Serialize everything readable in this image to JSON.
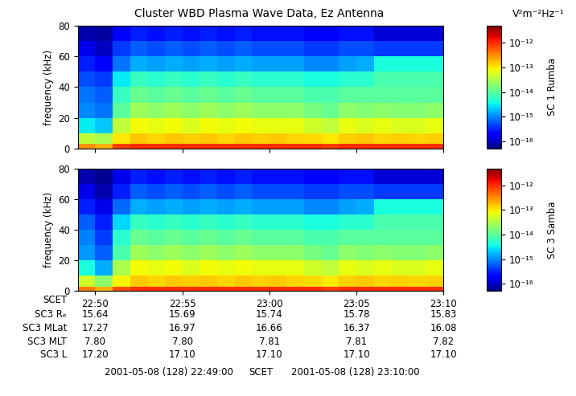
{
  "title": "Cluster WBD Plasma Wave Data, Ez Antenna",
  "units_label": "V²m⁻²Hz⁻¹",
  "chart_data": [
    {
      "type": "heatmap",
      "ylabel": "frequency (kHz)",
      "colorbar_label": "SC 1 Rumba",
      "xlim": [
        1369,
        1390
      ],
      "xticks": [
        1370,
        1375,
        1380,
        1385,
        1390
      ],
      "tick_labels": "y",
      "ylim": [
        0,
        80
      ],
      "yticks": [
        0,
        20,
        40,
        60,
        80
      ],
      "x_edges": [
        1369,
        1370,
        1371,
        1372,
        1373,
        1374,
        1375,
        1376,
        1377,
        1378,
        1379,
        1380,
        1381,
        1382,
        1383,
        1384,
        1385,
        1386,
        1387,
        1388,
        1389,
        1390
      ],
      "y_edges": [
        0,
        3,
        10,
        20,
        30,
        40,
        50,
        60,
        70,
        80
      ],
      "clim": [
        5e-17,
        5e-12
      ],
      "cticks": [
        {
          "value": 1e-16,
          "label": "10⁻¹⁶"
        },
        {
          "value": 1e-15,
          "label": "10⁻¹⁵"
        },
        {
          "value": 1e-14,
          "label": "10⁻¹⁴"
        },
        {
          "value": 1e-13,
          "label": "10⁻¹³"
        },
        {
          "value": 1e-12,
          "label": "10⁻¹²"
        }
      ],
      "cells": [
        [
          3e-13,
          2e-13,
          8e-13,
          1e-12,
          1e-12,
          1e-12,
          1e-12,
          1e-12,
          1e-12,
          1e-12,
          1e-12,
          1e-12,
          1e-12,
          1e-12,
          8e-13,
          1e-12,
          1e-12,
          1e-12,
          1e-12,
          1e-12,
          1e-12
        ],
        [
          4e-14,
          3e-14,
          1e-13,
          1.5e-13,
          1.3e-13,
          1.5e-13,
          1.4e-13,
          1.5e-13,
          1.3e-13,
          1.5e-13,
          1.4e-13,
          1.5e-13,
          1.3e-13,
          1.2e-13,
          1e-13,
          1.4e-13,
          1.5e-13,
          1.3e-13,
          1.4e-13,
          1.3e-13,
          1.4e-13
        ],
        [
          3e-15,
          2e-15,
          4e-14,
          8e-14,
          7e-14,
          8e-14,
          6e-14,
          8e-14,
          7e-14,
          8e-14,
          7e-14,
          7e-14,
          7e-14,
          5e-14,
          4e-14,
          7e-14,
          6e-14,
          7e-14,
          6e-14,
          6e-14,
          7e-14
        ],
        [
          1e-15,
          8e-16,
          1e-14,
          2.5e-14,
          2e-14,
          2.5e-14,
          2e-14,
          2.5e-14,
          2e-14,
          2.5e-14,
          2e-14,
          2e-14,
          2e-14,
          1.5e-14,
          1.2e-14,
          2e-14,
          1.8e-14,
          2e-14,
          1.8e-14,
          1.8e-14,
          2e-14
        ],
        [
          8e-16,
          6e-16,
          6e-15,
          1.2e-14,
          1e-14,
          1.2e-14,
          1e-14,
          1.2e-14,
          1e-14,
          1.2e-14,
          1e-14,
          1e-14,
          1e-14,
          8e-15,
          8e-15,
          1e-14,
          1e-14,
          1e-14,
          1e-14,
          1e-14,
          1e-14
        ],
        [
          5e-16,
          4e-16,
          3e-15,
          6e-15,
          5e-15,
          6e-15,
          5e-15,
          6e-15,
          5e-15,
          6e-15,
          5e-15,
          5e-15,
          5e-15,
          4e-15,
          4e-15,
          5e-15,
          5e-15,
          8e-15,
          8e-15,
          8e-15,
          8e-15
        ],
        [
          3e-16,
          2e-16,
          8e-16,
          1.5e-15,
          1.3e-15,
          1.5e-15,
          1.3e-15,
          1.5e-15,
          1.3e-15,
          1.5e-15,
          1.3e-15,
          1.3e-15,
          1.3e-15,
          1e-15,
          1e-15,
          1.3e-15,
          1.5e-15,
          4e-15,
          4e-15,
          4e-15,
          4e-15
        ],
        [
          1.5e-16,
          1e-16,
          4e-16,
          6e-16,
          5e-16,
          6e-16,
          5e-16,
          6e-16,
          5e-16,
          6e-16,
          5e-16,
          5e-16,
          5e-16,
          4e-16,
          4e-16,
          5e-16,
          5e-16,
          4e-16,
          4e-16,
          4e-16,
          4e-16
        ],
        [
          8e-17,
          7e-17,
          2e-16,
          3e-16,
          2.5e-16,
          3e-16,
          2.5e-16,
          3e-16,
          2.5e-16,
          3e-16,
          2.5e-16,
          2.5e-16,
          2.5e-16,
          2e-16,
          2e-16,
          2.5e-16,
          2.5e-16,
          1.2e-16,
          1.2e-16,
          1.2e-16,
          1.2e-16
        ]
      ]
    },
    {
      "type": "heatmap",
      "ylabel": "frequency (kHz)",
      "colorbar_label": "SC 3 Samba",
      "xlim": [
        1369,
        1390
      ],
      "xticks": [
        {
          "value": 1370,
          "label": "22:50"
        },
        {
          "value": 1375,
          "label": "22:55"
        },
        {
          "value": 1380,
          "label": "23:00"
        },
        {
          "value": 1385,
          "label": "23:05"
        },
        {
          "value": 1390,
          "label": "23:10"
        }
      ],
      "ylim": [
        0,
        80
      ],
      "yticks": [
        0,
        20,
        40,
        60,
        80
      ],
      "x_edges": [
        1369,
        1370,
        1371,
        1372,
        1373,
        1374,
        1375,
        1376,
        1377,
        1378,
        1379,
        1380,
        1381,
        1382,
        1383,
        1384,
        1385,
        1386,
        1387,
        1388,
        1389,
        1390
      ],
      "y_edges": [
        0,
        3,
        10,
        20,
        30,
        40,
        50,
        60,
        70,
        80
      ],
      "clim": [
        5e-17,
        5e-12
      ],
      "cticks": [
        {
          "value": 1e-16,
          "label": "10⁻¹⁶"
        },
        {
          "value": 1e-15,
          "label": "10⁻¹⁵"
        },
        {
          "value": 1e-14,
          "label": "10⁻¹⁴"
        },
        {
          "value": 1e-13,
          "label": "10⁻¹³"
        },
        {
          "value": 1e-12,
          "label": "10⁻¹²"
        }
      ],
      "cells": [
        [
          4e-13,
          2e-13,
          7e-13,
          1e-12,
          1e-12,
          1e-12,
          1e-12,
          1e-12,
          1e-12,
          1e-12,
          1e-12,
          1e-12,
          1e-12,
          1e-12,
          8e-13,
          1e-12,
          1e-12,
          1e-12,
          1e-12,
          1e-12,
          1e-12
        ],
        [
          5e-14,
          2e-14,
          9e-14,
          1.5e-13,
          1.3e-13,
          1.5e-13,
          1.4e-13,
          1.5e-13,
          1.3e-13,
          1.5e-13,
          1.4e-13,
          1.5e-13,
          1.3e-13,
          1.2e-13,
          1e-13,
          1.4e-13,
          1.5e-13,
          1.3e-13,
          1.4e-13,
          1.3e-13,
          1.4e-13
        ],
        [
          4e-15,
          1.5e-15,
          3e-14,
          8e-14,
          7e-14,
          8e-14,
          6e-14,
          8e-14,
          7e-14,
          8e-14,
          7e-14,
          7e-14,
          7e-14,
          5e-14,
          4e-14,
          7e-14,
          6e-14,
          7e-14,
          6e-14,
          6e-14,
          7e-14
        ],
        [
          1.2e-15,
          6e-16,
          8e-15,
          2.5e-14,
          2e-14,
          2.5e-14,
          2e-14,
          2.5e-14,
          2e-14,
          2.5e-14,
          2e-14,
          2e-14,
          2e-14,
          1.5e-14,
          1.2e-14,
          2e-14,
          1.8e-14,
          2e-14,
          1.8e-14,
          1.8e-14,
          2e-14
        ],
        [
          9e-16,
          4e-16,
          5e-15,
          1.2e-14,
          1e-14,
          1.2e-14,
          1e-14,
          1.2e-14,
          1e-14,
          1.2e-14,
          1e-14,
          1e-14,
          1e-14,
          8e-15,
          8e-15,
          1e-14,
          1e-14,
          1e-14,
          1e-14,
          1e-14,
          1e-14
        ],
        [
          6e-16,
          3e-16,
          2.5e-15,
          6e-15,
          5e-15,
          6e-15,
          5e-15,
          6e-15,
          5e-15,
          6e-15,
          5e-15,
          5e-15,
          5e-15,
          4e-15,
          4e-15,
          5e-15,
          5e-15,
          8e-15,
          8e-15,
          8e-15,
          8e-15
        ],
        [
          3e-16,
          1.5e-16,
          7e-16,
          1.5e-15,
          1.3e-15,
          1.5e-15,
          1.3e-15,
          1.5e-15,
          1.3e-15,
          1.5e-15,
          1.3e-15,
          1.3e-15,
          1.3e-15,
          1e-15,
          1e-15,
          1.3e-15,
          1.5e-15,
          4e-15,
          4e-15,
          4e-15,
          4e-15
        ],
        [
          1.5e-16,
          8e-17,
          3e-16,
          6e-16,
          5e-16,
          6e-16,
          5e-16,
          6e-16,
          5e-16,
          6e-16,
          5e-16,
          5e-16,
          5e-16,
          4e-16,
          4e-16,
          5e-16,
          5e-16,
          4e-16,
          4e-16,
          4e-16,
          4e-16
        ],
        [
          8e-17,
          6e-17,
          1.5e-16,
          3e-16,
          2.5e-16,
          3e-16,
          2.5e-16,
          3e-16,
          2.5e-16,
          3e-16,
          2.5e-16,
          2.5e-16,
          2.5e-16,
          2e-16,
          2e-16,
          2.5e-16,
          2.5e-16,
          1.2e-16,
          1.2e-16,
          1.2e-16,
          1.2e-16
        ]
      ]
    }
  ],
  "ephemeris": {
    "row_label": "SCET",
    "rows": [
      {
        "label": "SC3 Rₑ",
        "values": [
          "15.64",
          "15.69",
          "15.74",
          "15.78",
          "15.83"
        ]
      },
      {
        "label": "SC3 MLat",
        "values": [
          "17.27",
          "16.97",
          "16.66",
          "16.37",
          "16.08"
        ]
      },
      {
        "label": "SC3 MLT",
        "values": [
          "7.80",
          "7.80",
          "7.81",
          "7.81",
          "7.82"
        ]
      },
      {
        "label": "SC3 L",
        "values": [
          "17.20",
          "17.10",
          "17.10",
          "17.10",
          "17.10"
        ]
      }
    ]
  },
  "footer": [
    "2001-05-08 (128) 22:49:00",
    "SCET",
    "2001-05-08 (128) 23:10:00"
  ]
}
